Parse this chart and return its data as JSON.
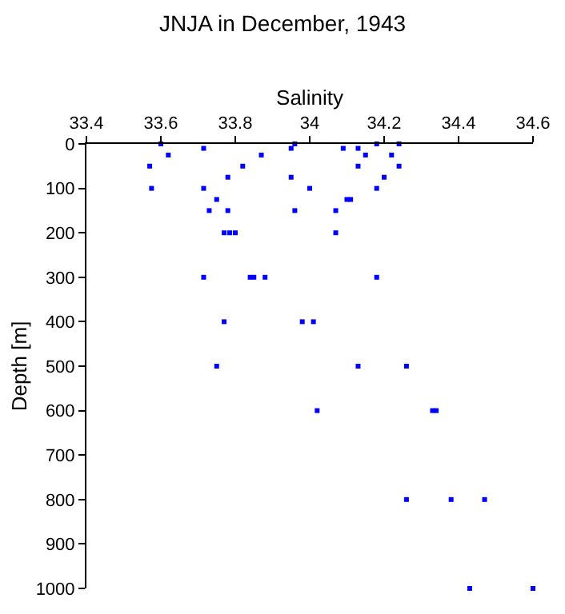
{
  "chart_data": {
    "type": "scatter",
    "title": "JNJA in December, 1943",
    "xlabel": "Salinity",
    "ylabel": "Depth [m]",
    "x": [
      33.6,
      33.96,
      34.18,
      34.24,
      33.715,
      33.95,
      34.09,
      34.13,
      33.62,
      33.87,
      34.15,
      34.22,
      33.57,
      33.82,
      34.13,
      34.24,
      33.78,
      33.95,
      34.2,
      33.575,
      33.715,
      34.0,
      34.18,
      33.75,
      34.1,
      34.11,
      33.73,
      33.78,
      33.96,
      34.07,
      33.77,
      33.785,
      33.8,
      34.07,
      33.715,
      33.84,
      33.85,
      33.88,
      34.18,
      33.77,
      33.98,
      34.01,
      33.75,
      34.13,
      34.26,
      34.02,
      34.33,
      34.34,
      34.26,
      34.38,
      34.47,
      34.43,
      34.6
    ],
    "series": [
      {
        "color": "#0000ff",
        "values": [
          0,
          0,
          0,
          0,
          10,
          10,
          10,
          10,
          25,
          25,
          25,
          25,
          50,
          50,
          50,
          50,
          75,
          75,
          75,
          100,
          100,
          100,
          100,
          125,
          125,
          125,
          150,
          150,
          150,
          150,
          200,
          200,
          200,
          200,
          300,
          300,
          300,
          300,
          300,
          400,
          400,
          400,
          500,
          500,
          500,
          600,
          600,
          600,
          800,
          800,
          800,
          1000,
          1000
        ]
      }
    ],
    "marker": "square",
    "xlim": [
      33.4,
      34.6
    ],
    "xticks": [
      33.4,
      33.6,
      33.8,
      34,
      34.2,
      34.4,
      34.6
    ],
    "ylim": [
      1000,
      0
    ],
    "yticks": [
      0,
      100,
      200,
      300,
      400,
      500,
      600,
      700,
      800,
      900,
      1000
    ]
  }
}
